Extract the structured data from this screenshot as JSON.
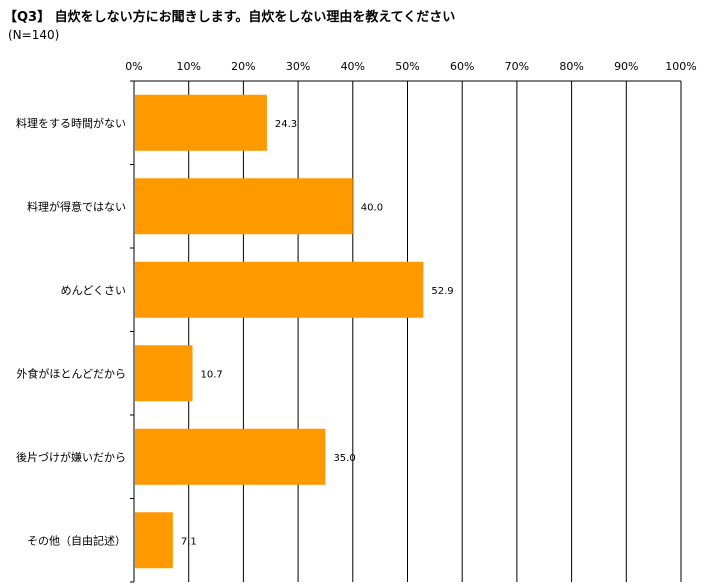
{
  "header": {
    "title": "【Q3】 自炊をしない方にお聞きします。自炊をしない理由を教えてください",
    "subtitle": "(N=140)"
  },
  "colors": {
    "bar": "#FF9900",
    "grid": "#000000"
  },
  "chart_data": {
    "type": "bar",
    "orientation": "horizontal",
    "title": "【Q3】 自炊をしない方にお聞きします。自炊をしない理由を教えてください",
    "subtitle": "(N=140)",
    "categories": [
      "料理をする時間がない",
      "料理が得意ではない",
      "めんどくさい",
      "外食がほとんどだから",
      "後片づけが嫌いだから",
      "その他（自由記述）"
    ],
    "values": [
      24.3,
      40.0,
      52.9,
      10.7,
      35.0,
      7.1
    ],
    "value_labels": [
      "24.3",
      "40.0",
      "52.9",
      "10.7",
      "35.0",
      "7.1"
    ],
    "xlim": [
      0,
      100
    ],
    "xticks": [
      "0%",
      "10%",
      "20%",
      "30%",
      "40%",
      "50%",
      "60%",
      "70%",
      "80%",
      "90%",
      "100%"
    ],
    "grid": true,
    "legend": "none"
  }
}
